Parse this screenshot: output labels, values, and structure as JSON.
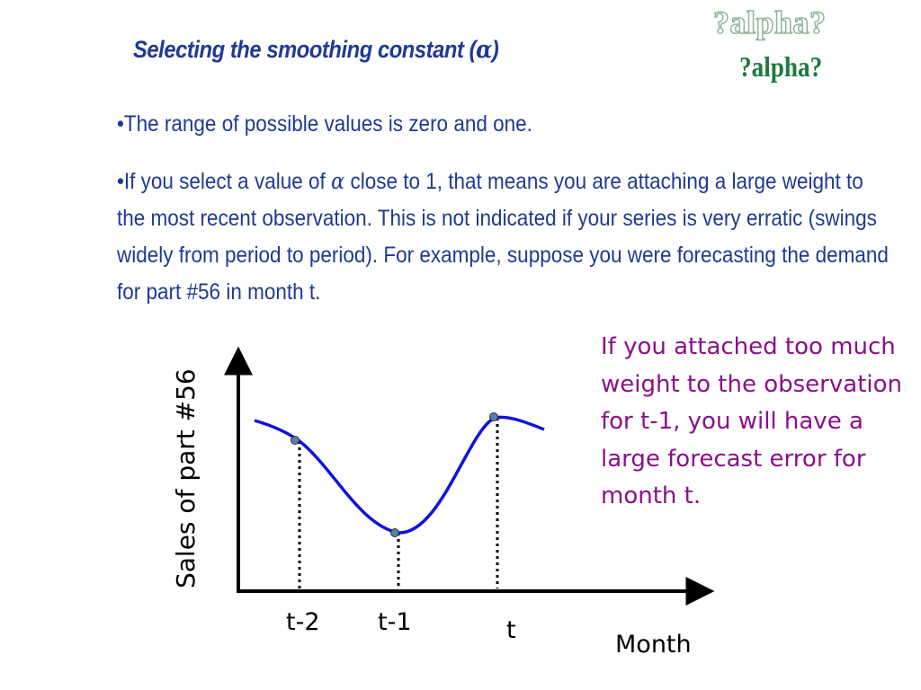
{
  "slide": {
    "title_text": "Selecting the smoothing constant (",
    "title_symbol": "α",
    "title_close": ")",
    "watermark_outline": "?alpha?",
    "watermark_solid": "?alpha?",
    "bullet1": "•The range of possible values is zero and one.",
    "bullet2_a": "•If you select a value of ",
    "bullet2_symbol": "α",
    "bullet2_b": " close to 1, that means you are attaching a large weight to the most recent observation. This is not indicated if your series is very erratic (swings widely from period to period). For example, suppose you were forecasting the demand for part  #56 in month t.",
    "callout": "If you attached too much weight to the observation for t-1, you will have a large forecast error for month t."
  },
  "diagram": {
    "ylabel": "Sales of part #56",
    "xlabel": "Month",
    "ticks": [
      "t-2",
      "t-1",
      "t"
    ],
    "colors": {
      "curve": "#1010e0",
      "point": "#5b7fa6",
      "axis": "#000000"
    }
  }
}
